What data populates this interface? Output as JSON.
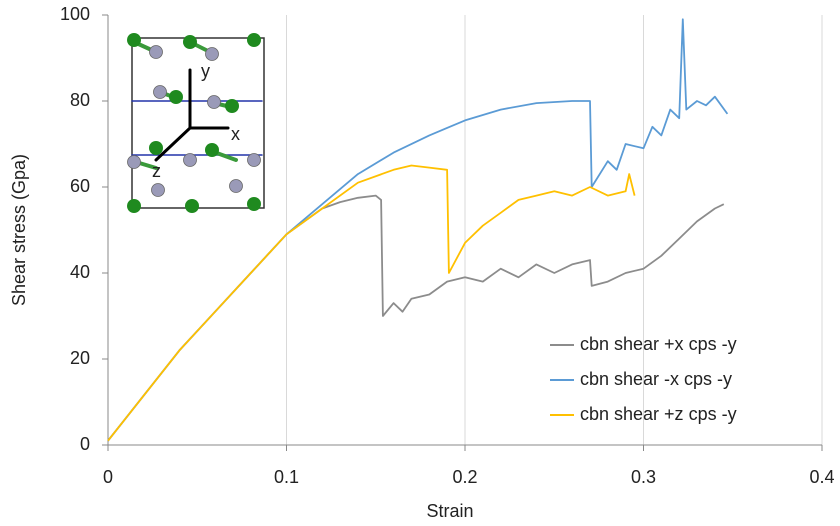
{
  "chart_data": {
    "type": "line",
    "x_label": "Strain",
    "y_label": "Shear stress (Gpa)",
    "xlim": [
      0,
      0.4
    ],
    "xticks": [
      0,
      0.1,
      0.2,
      0.3,
      0.4
    ],
    "ylim": [
      0,
      100
    ],
    "yticks": [
      0,
      20,
      40,
      60,
      80,
      100
    ],
    "grid": "x",
    "legend": "lower right",
    "annotations": [
      "y",
      "x",
      "z"
    ],
    "series": [
      {
        "name": "cbn shear +x cps -y",
        "color": "#8c8c8c",
        "x": [
          0,
          0.02,
          0.04,
          0.06,
          0.08,
          0.1,
          0.12,
          0.13,
          0.14,
          0.15,
          0.153,
          0.154,
          0.16,
          0.165,
          0.17,
          0.18,
          0.19,
          0.2,
          0.21,
          0.22,
          0.23,
          0.24,
          0.25,
          0.26,
          0.27,
          0.271,
          0.28,
          0.29,
          0.3,
          0.31,
          0.32,
          0.33,
          0.34,
          0.345
        ],
        "values": [
          1,
          11.5,
          22,
          31,
          40,
          49,
          55,
          56.5,
          57.5,
          58,
          57,
          30,
          33,
          31,
          34,
          35,
          38,
          39,
          38,
          41,
          39,
          42,
          40,
          42,
          43,
          37,
          38,
          40,
          41,
          44,
          48,
          52,
          55,
          56
        ]
      },
      {
        "name": "cbn shear -x cps -y",
        "color": "#5b9bd5",
        "x": [
          0,
          0.02,
          0.04,
          0.06,
          0.08,
          0.1,
          0.12,
          0.14,
          0.16,
          0.18,
          0.2,
          0.22,
          0.24,
          0.26,
          0.27,
          0.271,
          0.28,
          0.285,
          0.29,
          0.3,
          0.305,
          0.31,
          0.315,
          0.32,
          0.322,
          0.324,
          0.33,
          0.335,
          0.34,
          0.347
        ],
        "values": [
          1,
          11.5,
          22,
          31,
          40,
          49,
          56,
          63,
          68,
          72,
          75.5,
          78,
          79.5,
          80,
          80,
          60,
          66,
          64,
          70,
          69,
          74,
          72,
          78,
          76,
          99,
          78,
          80,
          79,
          81,
          77
        ]
      },
      {
        "name": "cbn shear +z cps -y",
        "color": "#ffc000",
        "x": [
          0,
          0.02,
          0.04,
          0.06,
          0.08,
          0.1,
          0.12,
          0.14,
          0.16,
          0.17,
          0.18,
          0.19,
          0.191,
          0.2,
          0.21,
          0.22,
          0.23,
          0.24,
          0.25,
          0.26,
          0.27,
          0.28,
          0.29,
          0.292,
          0.295
        ],
        "values": [
          1,
          11.5,
          22,
          31,
          40,
          49,
          55,
          61,
          64,
          65,
          64.5,
          64,
          40,
          47,
          51,
          54,
          57,
          58,
          59,
          58,
          60,
          58,
          59,
          63,
          58
        ]
      }
    ]
  }
}
